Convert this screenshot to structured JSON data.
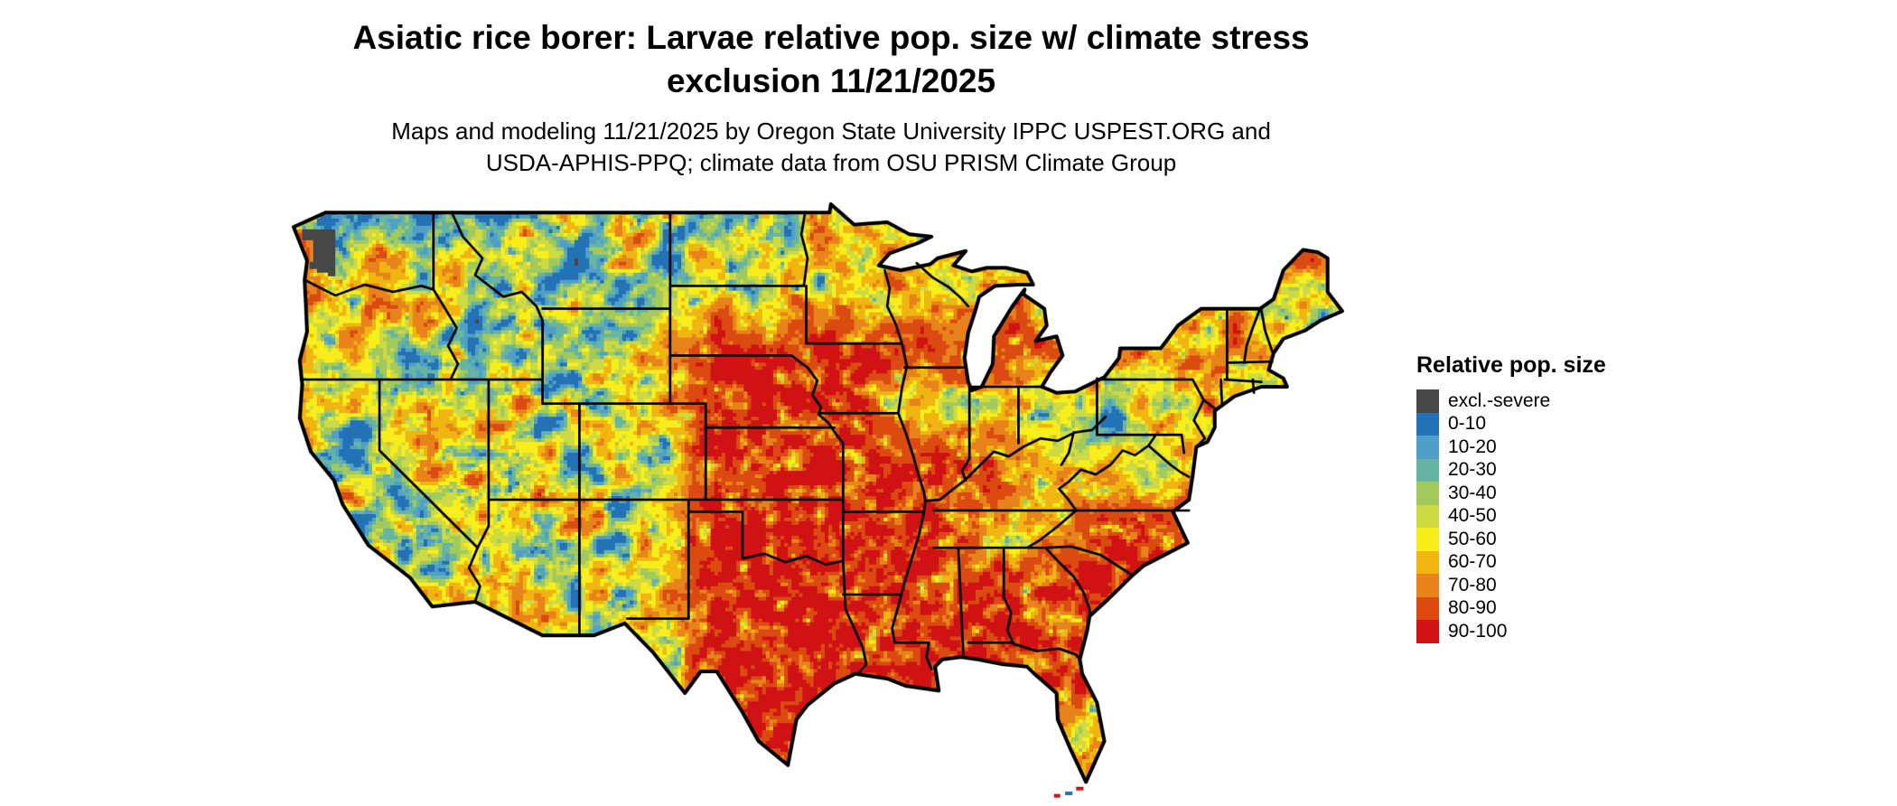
{
  "header": {
    "title_line1": "Asiatic rice borer: Larvae relative pop. size w/ climate stress",
    "title_line2": "exclusion 11/21/2025",
    "subtitle_line1": "Maps and modeling 11/21/2025 by Oregon State University IPPC USPEST.ORG and",
    "subtitle_line2": "USDA-APHIS-PPQ; climate data from OSU PRISM Climate Group"
  },
  "legend": {
    "title": "Relative pop. size",
    "items": [
      {
        "label": "excl.-severe",
        "color": "#474747"
      },
      {
        "label": "0-10",
        "color": "#2272b5"
      },
      {
        "label": "10-20",
        "color": "#4f9fc8"
      },
      {
        "label": "20-30",
        "color": "#66b5a3"
      },
      {
        "label": "30-40",
        "color": "#a2c95c"
      },
      {
        "label": "40-50",
        "color": "#cdda43"
      },
      {
        "label": "50-60",
        "color": "#f8ee1c"
      },
      {
        "label": "60-70",
        "color": "#f0b511"
      },
      {
        "label": "70-80",
        "color": "#e8821a"
      },
      {
        "label": "80-90",
        "color": "#da4a11"
      },
      {
        "label": "90-100",
        "color": "#d01215"
      }
    ]
  }
}
